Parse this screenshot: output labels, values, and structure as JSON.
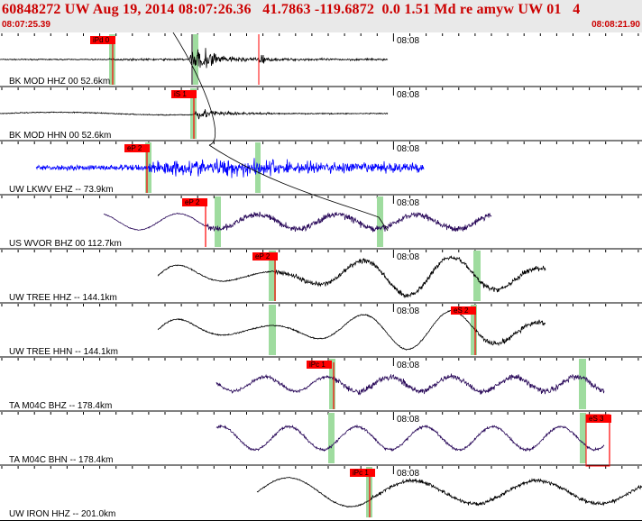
{
  "header": {
    "title": "60848272 UW Aug 19, 2014 08:07:26.36   41.7863 -119.6872  0.0 1.51 Md re amyw UW 01   4",
    "start_time": "08:07:25.39",
    "end_time": "08:08:21.90"
  },
  "time_tick_label": "08:08",
  "colors": {
    "accent": "#cc0000",
    "pick_box": "#ff0000",
    "window": "#9fdc9f",
    "trace_black": "#000000",
    "trace_blue": "#0000ff",
    "trace_purple": "#2a0a5a"
  },
  "traces": [
    {
      "label": "BK MOD HHZ 00 52.6km",
      "pick": "iPd 0",
      "color": "#000000"
    },
    {
      "label": "BK MOD HHN 00 52.6km",
      "pick": "iS 1",
      "color": "#000000"
    },
    {
      "label": "UW LKWV EHZ -- 73.9km",
      "pick": "eP 2",
      "color": "#0000ff"
    },
    {
      "label": "US WVOR BHZ 00 112.7km",
      "pick": "eP 2",
      "color": "#2a0a5a"
    },
    {
      "label": "UW TREE HHZ -- 144.1km",
      "pick": "eP 2",
      "color": "#000000"
    },
    {
      "label": "UW TREE HHN -- 144.1km",
      "pick": "eS 2",
      "color": "#000000"
    },
    {
      "label": "TA M04C BHZ -- 178.4km",
      "pick": "iPc 1",
      "color": "#2a0a5a"
    },
    {
      "label": "TA M04C BHN -- 178.4km",
      "pick": "eS 3",
      "color": "#2a0a5a"
    },
    {
      "label": "UW IRON HHZ -- 201.0km",
      "pick": "iPc 1",
      "color": "#000000"
    }
  ]
}
